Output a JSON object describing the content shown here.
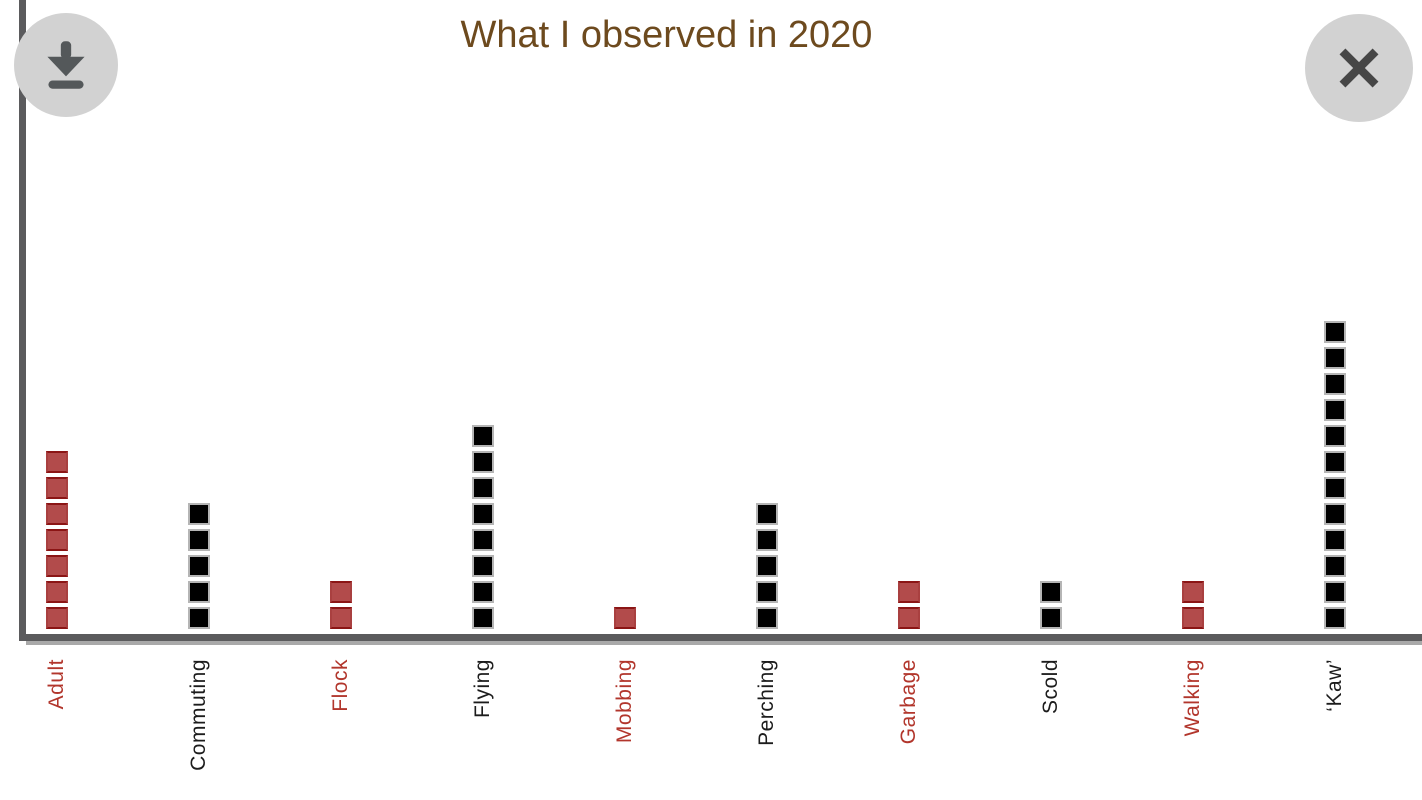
{
  "header": {
    "title": "What I observed in 2020",
    "download_button_label": "download chart",
    "close_button_label": "close chart"
  },
  "chart_data": {
    "type": "bar",
    "subtype": "unit-square pictogram (each square = 1 observation)",
    "title": "What I observed in 2020",
    "categories": [
      "Adult",
      "Commuting",
      "Flock",
      "Flying",
      "Mobbing",
      "Perching",
      "Garbage",
      "Scold",
      "Walking",
      "‘Kaw’"
    ],
    "values": [
      7,
      5,
      2,
      8,
      1,
      5,
      2,
      2,
      2,
      12
    ],
    "category_colors": [
      "red",
      "black",
      "red",
      "black",
      "red",
      "black",
      "red",
      "black",
      "red",
      "black"
    ],
    "palette": {
      "red": "#b24b4b",
      "red_border": "#8e1a1a",
      "red_label": "#b2362c",
      "black": "#000000",
      "black_border": "#b5b5b5",
      "black_label": "#1c1c1c",
      "axis": "#5b5b5d",
      "title": "#6d4a1e",
      "button_bg": "#d2d2d2",
      "button_icon": "#54585a"
    },
    "xlabel": "",
    "ylabel": "",
    "ylim": [
      0,
      12
    ],
    "grid": false,
    "legend": "none",
    "label_rotation_deg": -90
  }
}
